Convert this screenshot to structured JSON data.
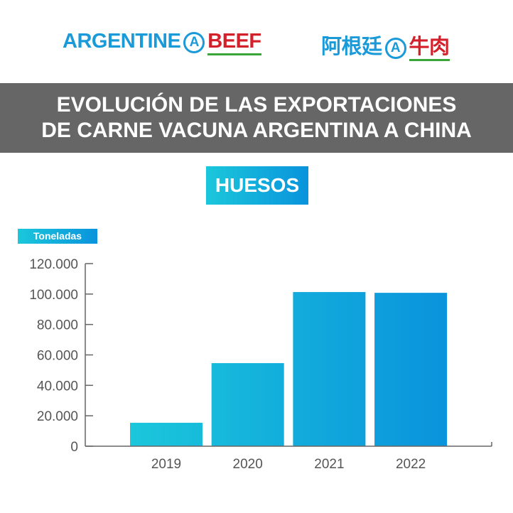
{
  "logos": {
    "en_part1": "ARGENTINE",
    "en_part2": "BEEF",
    "zh_part1": "阿根廷",
    "zh_part2": "牛肉",
    "mark": "A"
  },
  "header": {
    "line1": "EVOLUCIÓN DE LAS EXPORTACIONES",
    "line2": "DE CARNE VACUNA ARGENTINA A CHINA"
  },
  "colors": {
    "bar_start": "#1bc7db",
    "bar_end": "#0a93dc",
    "band": "#666666"
  },
  "chart_data": {
    "type": "bar",
    "title": "HUESOS",
    "ylabel": "Toneladas",
    "xlabel": "",
    "categories": [
      "2019",
      "2020",
      "2021",
      "2022"
    ],
    "values": [
      15400,
      54600,
      101300,
      100800
    ],
    "ylim": [
      0,
      120000
    ],
    "yticks": [
      0,
      20000,
      40000,
      60000,
      80000,
      100000,
      120000
    ],
    "ytick_labels": [
      "0",
      "20.000",
      "40.000",
      "60.000",
      "80.000",
      "100.000",
      "120.000"
    ],
    "grid": false
  }
}
